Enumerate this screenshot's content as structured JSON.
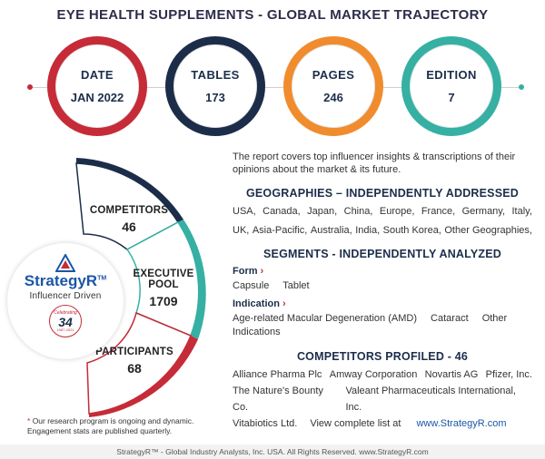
{
  "title": "EYE HEALTH SUPPLEMENTS - GLOBAL MARKET TRAJECTORY",
  "stats": [
    {
      "label": "DATE",
      "value": "JAN 2022",
      "color": "#c62b38"
    },
    {
      "label": "TABLES",
      "value": "173",
      "color": "#1c2d4a"
    },
    {
      "label": "PAGES",
      "value": "246",
      "color": "#f08c2e"
    },
    {
      "label": "EDITION",
      "value": "7",
      "color": "#35b0a3"
    }
  ],
  "segments": [
    {
      "label": "COMPETITORS",
      "value": "46",
      "color": "#1c2d4a"
    },
    {
      "label_line1": "EXECUTIVE",
      "label_line2": "POOL",
      "value": "1709",
      "color": "#35b0a3"
    },
    {
      "label": "PARTICIPANTS",
      "value": "68",
      "color": "#c62b38"
    }
  ],
  "badge": {
    "brand": "StrategyR",
    "tm": "TM",
    "sub": "Influencer Driven",
    "seal_top": "Celebrating",
    "seal_num": "34",
    "seal_bottom": "1987-2021"
  },
  "footnote": {
    "line1": "Our research program is ongoing and dynamic.",
    "line2": "Engagement stats are published quarterly."
  },
  "intro": "The report covers top influencer insights & transcriptions of their opinions about the market & its future.",
  "geographies": {
    "heading": "GEOGRAPHIES – INDEPENDENTLY ADDRESSED",
    "row1": [
      "USA,",
      "Canada,",
      "Japan,",
      "China,",
      "Europe,",
      "France,",
      "Germany,",
      "Italy,"
    ],
    "row2": [
      "UK,",
      "Asia-Pacific,",
      "Australia,",
      "India,",
      "South Korea,",
      "Other Geographies,"
    ]
  },
  "segments_section": {
    "heading": "SEGMENTS - INDEPENDENTLY ANALYZED",
    "form_label": "Form",
    "form_items": [
      "Capsule",
      "Tablet"
    ],
    "indication_label": "Indication",
    "indication_items": [
      "Age-related Macular Degeneration (AMD)",
      "Cataract",
      "Other Indications"
    ]
  },
  "competitors_section": {
    "heading": "COMPETITORS PROFILED - 46",
    "row1": [
      "Alliance Pharma Plc",
      "Amway Corporation",
      "Novartis AG",
      "Pfizer, Inc."
    ],
    "row2": [
      "The Nature's Bounty Co.",
      "Valeant Pharmaceuticals International, Inc."
    ],
    "row3_items": [
      "Vitabiotics Ltd."
    ],
    "row3_text": "View complete list at",
    "row3_link": "www.StrategyR.com"
  },
  "footer": "StrategyR™ - Global Industry Analysts, Inc. USA. All Rights Reserved. www.StrategyR.com"
}
